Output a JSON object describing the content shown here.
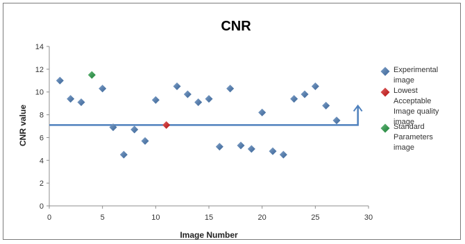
{
  "chart_data": {
    "type": "scatter",
    "title": "CNR",
    "xlabel": "Image Number",
    "ylabel": "CNR value",
    "xlim": [
      0,
      30
    ],
    "ylim": [
      0,
      14
    ],
    "xticks": [
      0,
      5,
      10,
      15,
      20,
      25,
      30
    ],
    "yticks": [
      0,
      2,
      4,
      6,
      8,
      10,
      12,
      14
    ],
    "grid": false,
    "legend_position": "right",
    "series": [
      {
        "name": "Experimental image",
        "color": "#4f81bd",
        "marker": "diamond",
        "points": [
          [
            1,
            11.0
          ],
          [
            2,
            9.4
          ],
          [
            3,
            9.1
          ],
          [
            5,
            10.3
          ],
          [
            6,
            6.9
          ],
          [
            7,
            4.5
          ],
          [
            8,
            6.7
          ],
          [
            9,
            5.7
          ],
          [
            10,
            9.3
          ],
          [
            12,
            10.5
          ],
          [
            13,
            9.8
          ],
          [
            14,
            9.1
          ],
          [
            15,
            9.4
          ],
          [
            16,
            5.2
          ],
          [
            17,
            10.3
          ],
          [
            18,
            5.3
          ],
          [
            19,
            5.0
          ],
          [
            20,
            8.2
          ],
          [
            21,
            4.8
          ],
          [
            22,
            4.5
          ],
          [
            23,
            9.4
          ],
          [
            24,
            9.8
          ],
          [
            25,
            10.5
          ],
          [
            26,
            8.8
          ],
          [
            27,
            7.5
          ]
        ]
      },
      {
        "name": "Lowest Acceptable Image quality image",
        "color": "#e02020",
        "marker": "diamond",
        "points": [
          [
            11,
            7.1
          ]
        ]
      },
      {
        "name": "Standard Parameters image",
        "color": "#2aa34a",
        "marker": "diamond",
        "points": [
          [
            4,
            11.5
          ]
        ]
      }
    ],
    "threshold_line": {
      "y": 7.1,
      "x_start": 0,
      "x_end": 29,
      "arrow_to_y": 8.8,
      "color": "#4f81bd"
    },
    "legend_lines": [
      [
        "Experimental",
        "image"
      ],
      [
        "Lowest",
        "Acceptable",
        "Image quality",
        "image"
      ],
      [
        "Standard",
        "Parameters",
        "image"
      ]
    ]
  }
}
